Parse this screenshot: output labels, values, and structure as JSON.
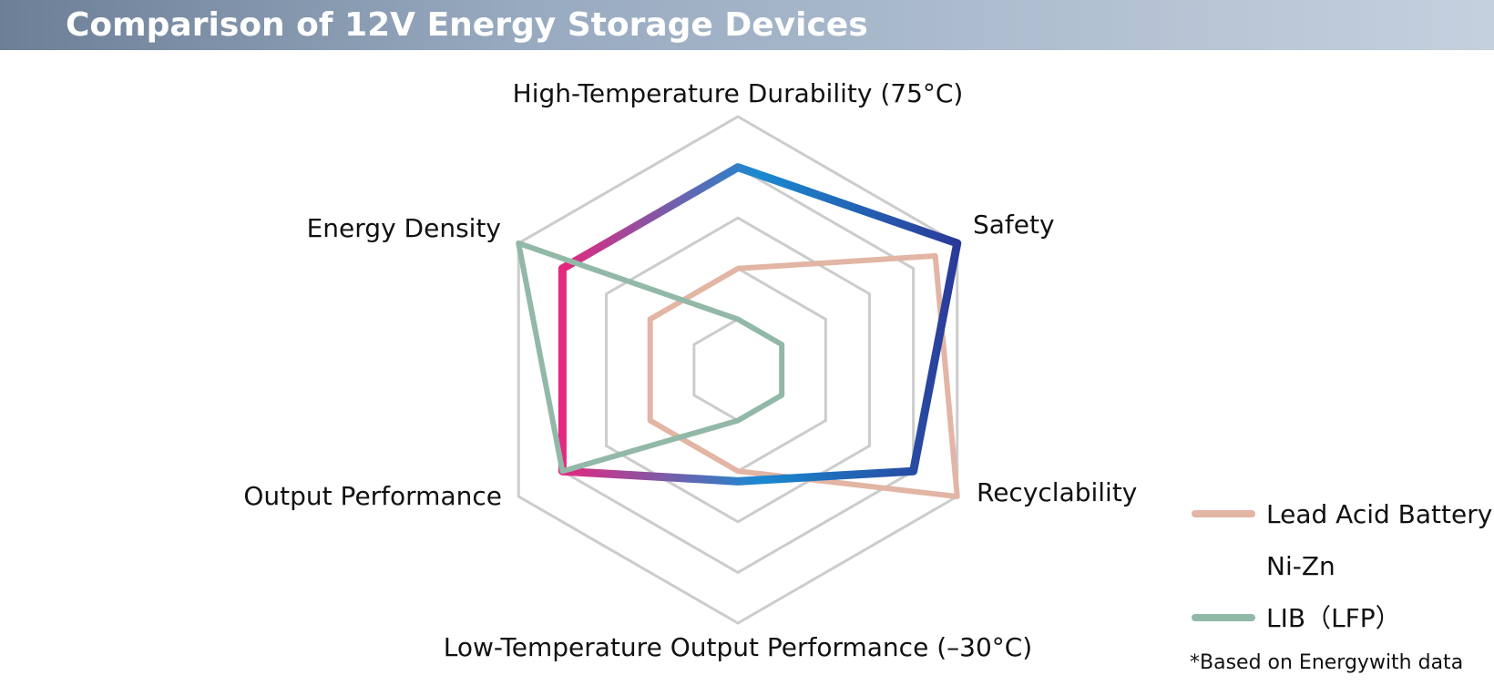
{
  "chart_data": {
    "type": "radar",
    "title": "Comparison of 12V Energy Storage Devices",
    "categories": [
      "High-Temperature Durability (75°C)",
      "Safety",
      "Recyclability",
      "Low-Temperature Output Performance (–30°C)",
      "Output Performance",
      "Energy Density"
    ],
    "rlim": [
      0,
      5
    ],
    "rticks": [
      1,
      2,
      3,
      4,
      5
    ],
    "grid": true,
    "legend": "lower right",
    "series": [
      {
        "name": "Lead Acid Battery",
        "color": "#e2b5a5",
        "values": [
          2,
          4.5,
          5,
          2,
          2,
          2
        ]
      },
      {
        "name": "Ni-Zn",
        "color": "#2b3a98",
        "gradient": [
          "#e4287e",
          "#1a8ad0",
          "#2b3a98"
        ],
        "values": [
          4,
          5,
          4,
          2.2,
          4,
          4
        ]
      },
      {
        "name": "LIB（LFP）",
        "color": "#92b8a8",
        "values": [
          1,
          1,
          1,
          1,
          4,
          5
        ]
      }
    ],
    "footnote": "*Based on Energywith data"
  }
}
